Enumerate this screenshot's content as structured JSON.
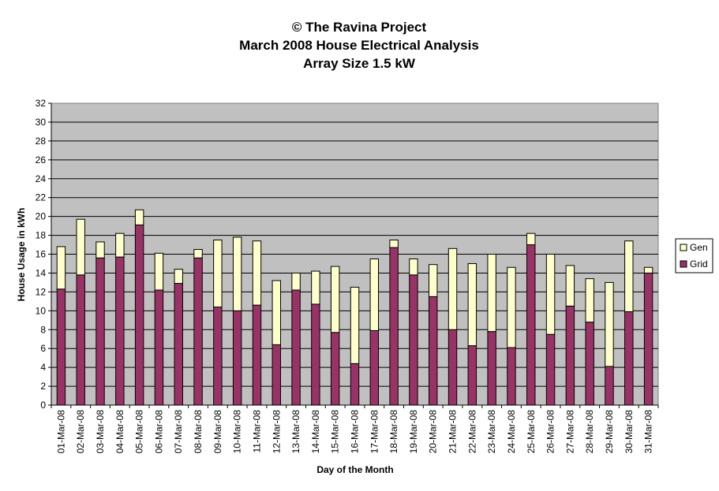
{
  "colors": {
    "plot_bg": "#c0c0c0",
    "grid": "#000000",
    "grid_series": "#993366",
    "gen_series": "#ffffcc",
    "bar_stroke": "#000000"
  },
  "chart_data": {
    "type": "bar",
    "stacked": true,
    "title_lines": [
      "© The Ravina Project",
      "March 2008 House Electrical Analysis",
      "Array Size 1.5 kW"
    ],
    "xlabel": "Day of the Month",
    "ylabel": "House Usage in kWh",
    "ylim": [
      0,
      32
    ],
    "ytick_step": 2,
    "grid": true,
    "legend_position": "right",
    "categories": [
      "01-Mar-08",
      "02-Mar-08",
      "03-Mar-08",
      "04-Mar-08",
      "05-Mar-08",
      "06-Mar-08",
      "07-Mar-08",
      "08-Mar-08",
      "09-Mar-08",
      "10-Mar-08",
      "11-Mar-08",
      "12-Mar-08",
      "13-Mar-08",
      "14-Mar-08",
      "15-Mar-08",
      "16-Mar-08",
      "17-Mar-08",
      "18-Mar-08",
      "19-Mar-08",
      "20-Mar-08",
      "21-Mar-08",
      "22-Mar-08",
      "23-Mar-08",
      "24-Mar-08",
      "25-Mar-08",
      "26-Mar-08",
      "27-Mar-08",
      "28-Mar-08",
      "29-Mar-08",
      "30-Mar-08",
      "31-Mar-08"
    ],
    "series": [
      {
        "name": "Grid",
        "values": [
          12.3,
          13.8,
          15.6,
          15.7,
          19.1,
          12.2,
          12.9,
          15.6,
          10.4,
          10.0,
          10.6,
          6.4,
          12.2,
          10.7,
          7.7,
          4.4,
          7.9,
          16.7,
          13.8,
          11.5,
          8.0,
          6.3,
          7.8,
          6.1,
          17.0,
          7.5,
          10.5,
          8.8,
          4.1,
          9.9,
          14.0
        ]
      },
      {
        "name": "Gen",
        "values": [
          4.5,
          5.9,
          1.7,
          2.5,
          1.6,
          3.9,
          1.5,
          0.9,
          7.1,
          7.8,
          6.8,
          6.8,
          1.8,
          3.5,
          7.0,
          8.1,
          7.6,
          0.8,
          1.7,
          3.4,
          8.6,
          8.7,
          8.2,
          8.5,
          1.2,
          8.5,
          4.3,
          4.6,
          8.9,
          7.5,
          0.6
        ]
      }
    ],
    "legend": [
      "Gen",
      "Grid"
    ]
  }
}
